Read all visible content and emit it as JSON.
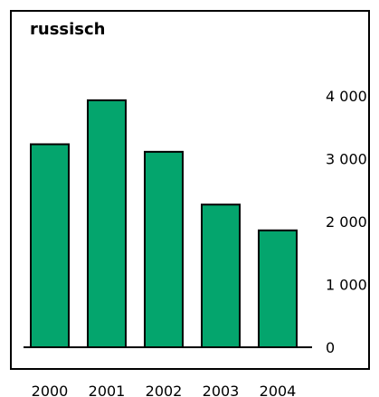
{
  "chart_data": {
    "type": "bar",
    "title": "russisch",
    "categories": [
      "2000",
      "2001",
      "2002",
      "2003",
      "2004"
    ],
    "values": [
      3230,
      3930,
      3110,
      2270,
      1860
    ],
    "ylim": [
      0,
      4000
    ],
    "yticks": [
      0,
      1000,
      2000,
      3000,
      4000
    ],
    "ytick_labels": [
      "0",
      "1 000",
      "2 000",
      "3 000",
      "4 000"
    ],
    "y_axis_side": "right",
    "bar_color": "#04a56d",
    "grid": false,
    "xlabel": "",
    "ylabel": ""
  }
}
